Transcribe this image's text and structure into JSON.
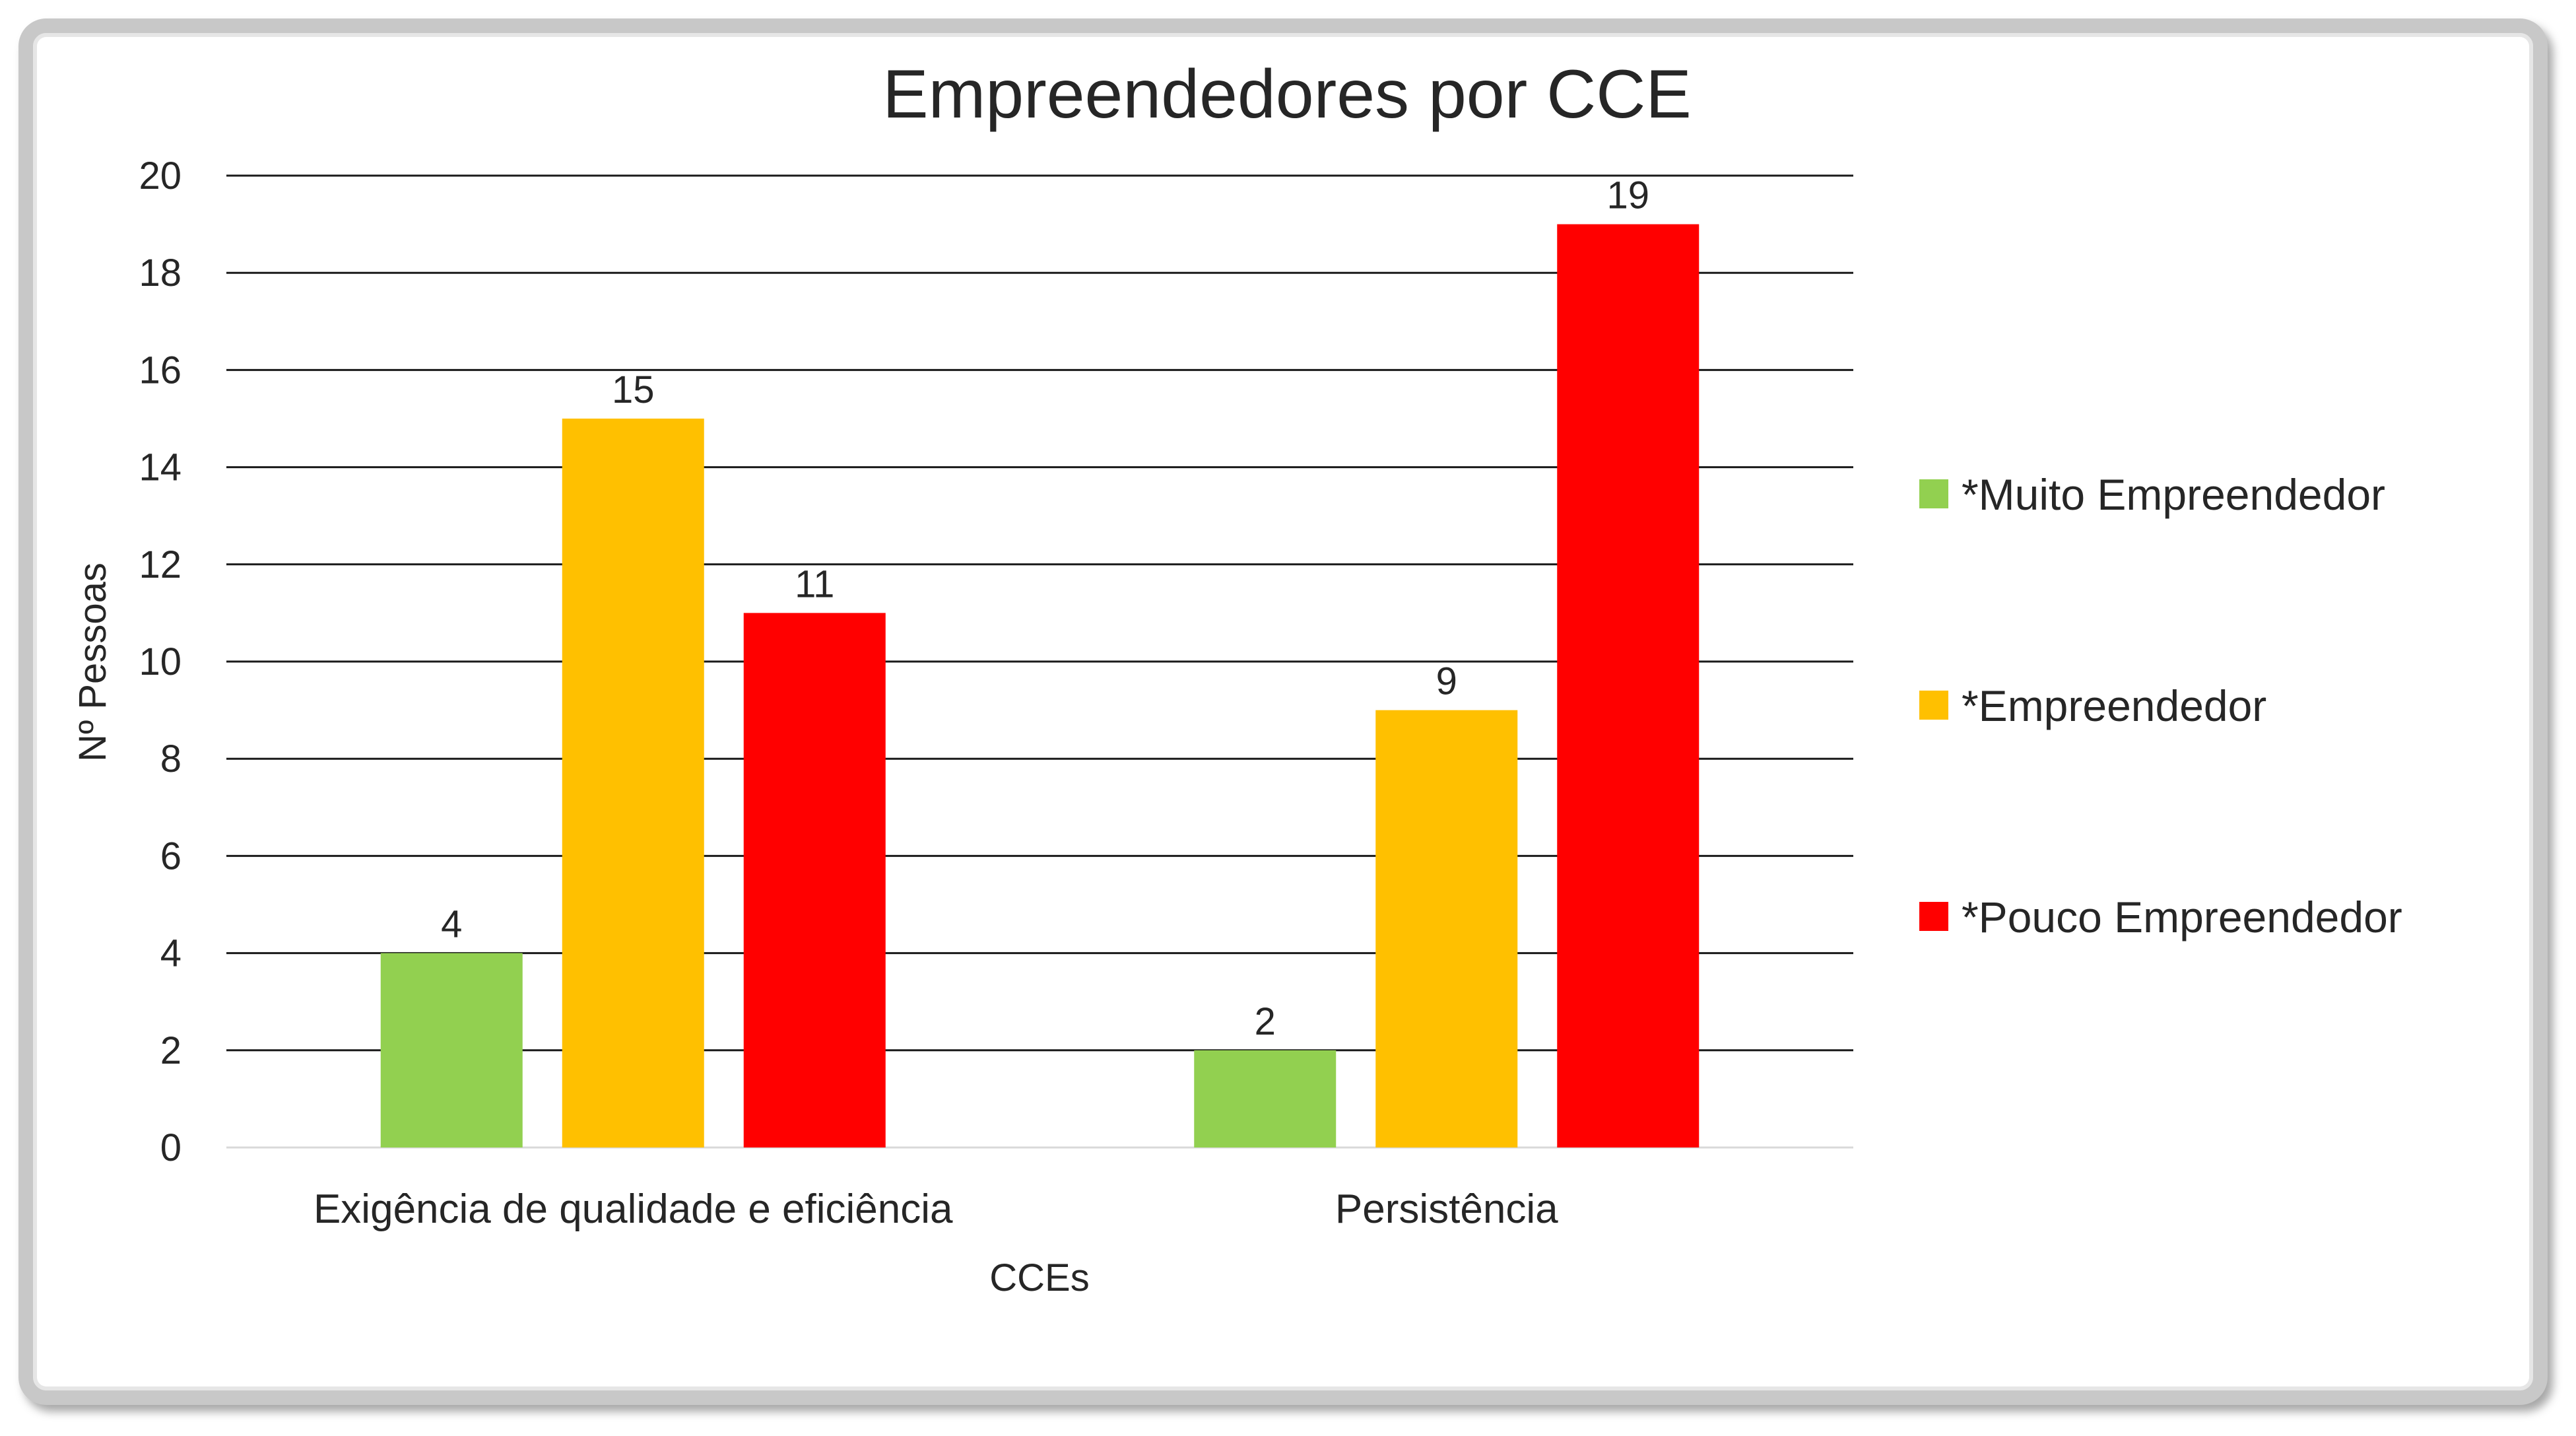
{
  "chart_data": {
    "type": "bar",
    "title": "Empreendedores por CCE",
    "xlabel": "CCEs",
    "ylabel": "Nº Pessoas",
    "categories": [
      "Exigência de qualidade e eficiência",
      "Persistência"
    ],
    "series": [
      {
        "name": "*Muito Empreendedor",
        "color": "#92d050",
        "values": [
          4,
          2
        ]
      },
      {
        "name": "*Empreendedor",
        "color": "#ffc000",
        "values": [
          15,
          9
        ]
      },
      {
        "name": "*Pouco Empreendedor",
        "color": "#ff0000",
        "values": [
          11,
          19
        ]
      }
    ],
    "ylim": [
      0,
      20
    ],
    "yticks": [
      "0",
      "2",
      "4",
      "6",
      "8",
      "10",
      "12",
      "14",
      "16",
      "18",
      "20"
    ],
    "grid": true,
    "legend_position": "right",
    "data_labels": true
  }
}
